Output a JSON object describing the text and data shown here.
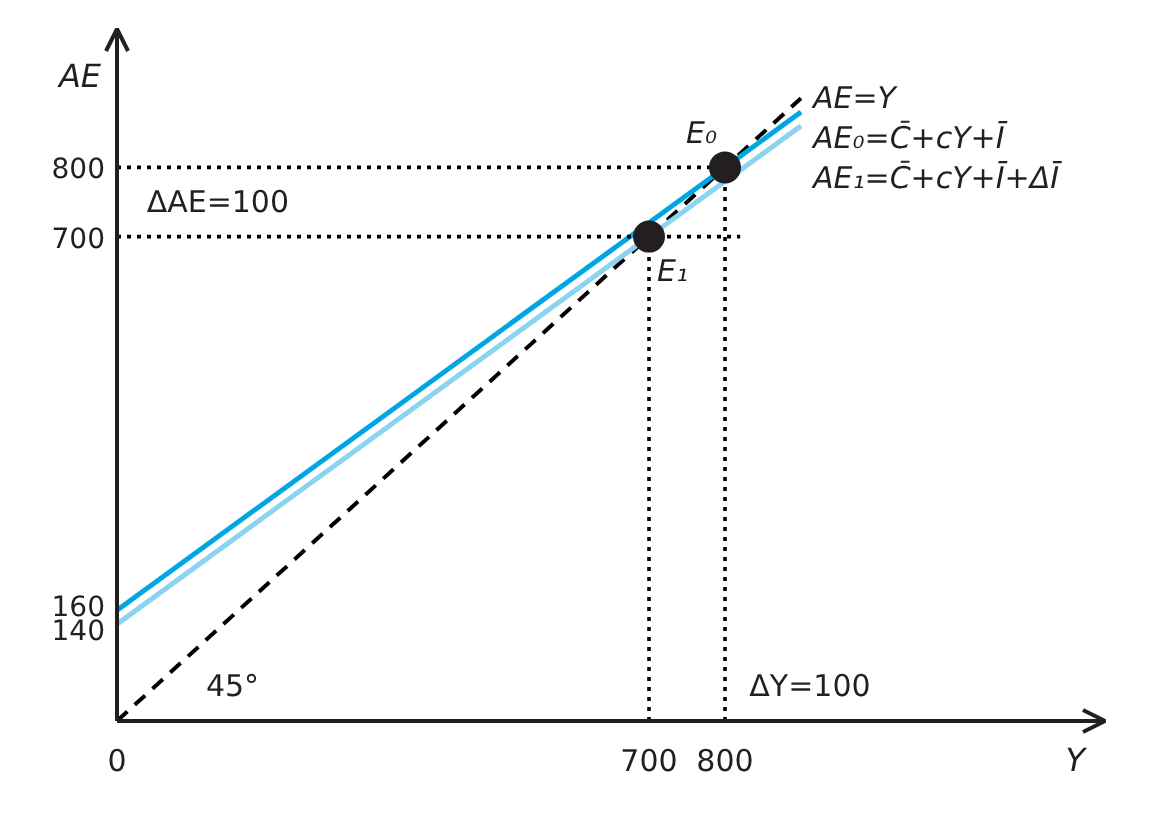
{
  "chart_data": {
    "type": "line",
    "xlabel": "Y",
    "ylabel": "AE",
    "xlim": [
      0,
      1300
    ],
    "ylim": [
      0,
      1000
    ],
    "xticks": [
      0,
      700,
      800
    ],
    "yticks": [
      140,
      160,
      700,
      800
    ],
    "series": [
      {
        "name": "AE=Y",
        "color": "#000000",
        "line_style": "dashed",
        "x": [
          0,
          900
        ],
        "values": [
          0,
          900
        ]
      },
      {
        "name": "AE₀=C̄+cY+Ī",
        "color": "#00a6e2",
        "x": [
          0,
          900
        ],
        "values": [
          160,
          880
        ]
      },
      {
        "name": "AE₁=C̄+cY+Ī+ΔĪ",
        "color": "#8ad4f2",
        "x": [
          0,
          900
        ],
        "values": [
          140,
          860
        ]
      },
      {
        "color": "#000000",
        "line_style": "dotted",
        "x": [
          800,
          800
        ],
        "values": [
          0,
          800
        ]
      },
      {
        "color": "#000000",
        "line_style": "dotted",
        "x": [
          0,
          800
        ],
        "values": [
          800,
          800
        ]
      },
      {
        "color": "#000000",
        "line_style": "dotted",
        "x": [
          700,
          700
        ],
        "values": [
          0,
          700
        ]
      },
      {
        "color": "#000000",
        "line_style": "dotted",
        "x": [
          0,
          820
        ],
        "values": [
          700,
          700
        ]
      },
      {
        "name": "E₀",
        "type": "scatter",
        "marker": "circle",
        "color": "#231f20",
        "x": [
          800
        ],
        "values": [
          800
        ]
      },
      {
        "name": "E₁",
        "type": "scatter",
        "marker": "circle",
        "color": "#231f20",
        "x": [
          700
        ],
        "values": [
          700
        ]
      }
    ],
    "annotations": [
      "ΔAE=100",
      "ΔY=100",
      "45°"
    ]
  }
}
